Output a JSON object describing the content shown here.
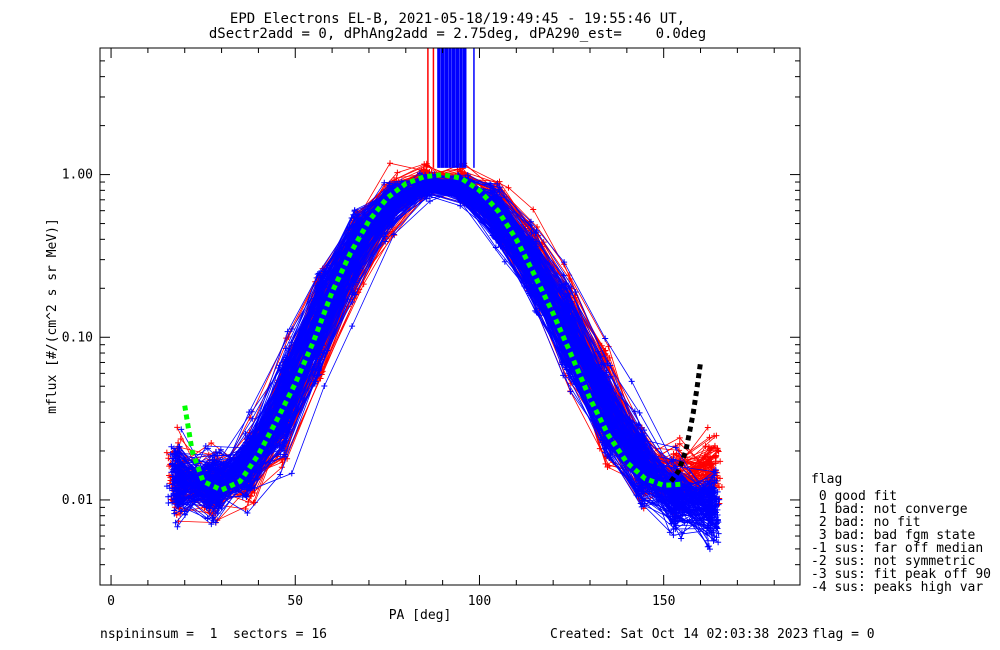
{
  "chart_data": {
    "type": "line",
    "title": "EPD Electrons EL-B, 2021-05-18/19:49:45 - 19:55:46 UT,",
    "subtitle": "dSectr2add = 0, dPhAng2add = 2.75deg, dPA290_est=    0.0deg",
    "xlabel": "PA [deg]",
    "ylabel": "mflux [#/(cm^2 s sr MeV)]",
    "xlim": [
      -3,
      187
    ],
    "ylim": [
      0.003,
      6
    ],
    "y_scale": "log",
    "x_ticks": [
      0,
      50,
      100,
      150
    ],
    "x_tick_labels": [
      "0",
      "50",
      "100",
      "150"
    ],
    "y_ticks": [
      0.01,
      0.1,
      1.0
    ],
    "y_tick_labels": [
      "0.01",
      "0.10",
      "1.00"
    ],
    "grid": false,
    "series": [
      {
        "color": "#ff0000",
        "marker": "+",
        "representative_x": [
          22,
          30,
          40,
          50,
          60,
          70,
          80,
          90,
          100,
          110,
          120,
          130,
          140,
          150,
          160
        ],
        "representative_y": [
          0.014,
          0.011,
          0.016,
          0.05,
          0.17,
          0.45,
          0.85,
          1.0,
          0.8,
          0.45,
          0.2,
          0.07,
          0.02,
          0.012,
          0.015
        ]
      },
      {
        "color": "#0000ff",
        "marker": "+",
        "representative_x": [
          22,
          30,
          40,
          50,
          60,
          70,
          80,
          90,
          100,
          110,
          120,
          130,
          140,
          150,
          158
        ],
        "representative_y": [
          0.013,
          0.012,
          0.018,
          0.055,
          0.2,
          0.5,
          0.82,
          0.9,
          0.75,
          0.4,
          0.17,
          0.055,
          0.02,
          0.011,
          0.009
        ]
      },
      {
        "color": "#00ff00",
        "style": "dotted-thick",
        "x": [
          20,
          22,
          25,
          30,
          35,
          40,
          45,
          50,
          55,
          60,
          65,
          70,
          75,
          80,
          85,
          90,
          95,
          100,
          105,
          110,
          115,
          120,
          125,
          130,
          135,
          140,
          145,
          150,
          155
        ],
        "y": [
          0.038,
          0.02,
          0.013,
          0.0115,
          0.013,
          0.019,
          0.031,
          0.052,
          0.095,
          0.19,
          0.33,
          0.52,
          0.72,
          0.88,
          0.97,
          1.0,
          0.95,
          0.8,
          0.6,
          0.4,
          0.24,
          0.14,
          0.077,
          0.042,
          0.025,
          0.017,
          0.0135,
          0.0123,
          0.0125
        ]
      },
      {
        "color": "#000000",
        "style": "dotted-thick",
        "x": [
          152,
          154,
          156,
          157,
          158,
          159,
          160
        ],
        "y": [
          0.013,
          0.015,
          0.02,
          0.026,
          0.034,
          0.048,
          0.07
        ]
      }
    ],
    "legend": {
      "placement": "right",
      "title": "flag",
      "items": [
        " 0 good fit",
        " 1 bad: not converge",
        " 2 bad: no fit",
        " 3 bad: bad fgm state",
        "-1 sus: far off median",
        "-2 sus: not symmetric",
        "-3 sus: fit peak off 90",
        "-4 sus: peaks high var"
      ]
    }
  },
  "footer": {
    "left": "nspininsum =  1  sectors = 16",
    "created": "Created: Sat Oct 14 02:03:38 2023",
    "flag": "flag = 0"
  }
}
